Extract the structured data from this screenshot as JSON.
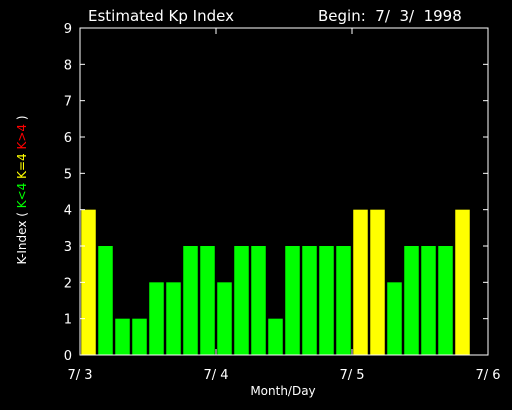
{
  "chart_data": {
    "type": "bar",
    "title": "Estimated Kp Index",
    "begin_label": "Begin:  7/  3/  1998",
    "xlabel": "Month/Day",
    "ylabel_prefix": "K-Index",
    "ylabel_parts": [
      {
        "text": "(",
        "color": "#ffffff"
      },
      {
        "text": "K<4",
        "color": "#00ff00"
      },
      {
        "text": "K=4",
        "color": "#ffff00"
      },
      {
        "text": "K>4",
        "color": "#ff0000"
      },
      {
        "text": ")",
        "color": "#ffffff"
      }
    ],
    "ylim": [
      0,
      9
    ],
    "yticks": [
      "0",
      "1",
      "2",
      "3",
      "4",
      "5",
      "6",
      "7",
      "8",
      "9"
    ],
    "xticks": [
      "7/ 3",
      "7/ 4",
      "7/ 5",
      "7/ 6"
    ],
    "values": [
      4,
      3,
      1,
      1,
      2,
      2,
      3,
      3,
      2,
      3,
      3,
      1,
      3,
      3,
      3,
      3,
      4,
      4,
      2,
      3,
      3,
      3,
      4
    ],
    "colors": {
      "low": "#00ff00",
      "equal": "#ffff00",
      "high": "#ff0000",
      "axis": "#ffffff",
      "background": "#000000"
    }
  }
}
